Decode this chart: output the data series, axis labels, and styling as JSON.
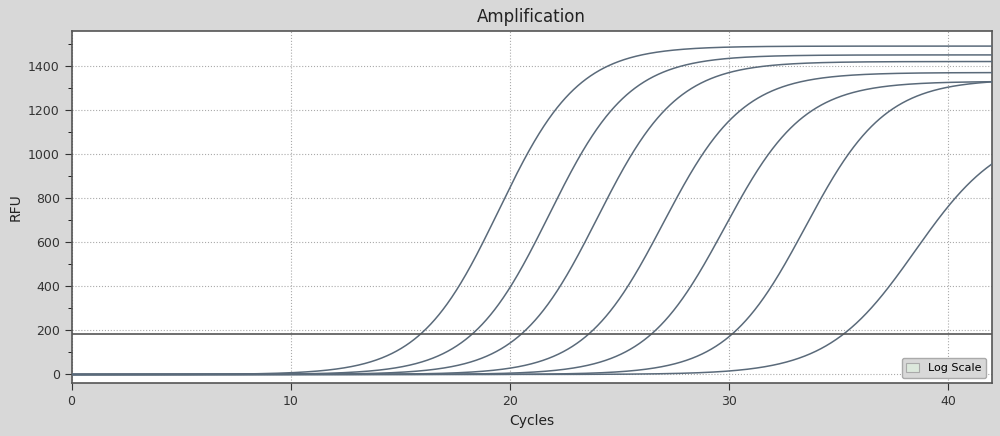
{
  "title": "Amplification",
  "xlabel": "Cycles",
  "ylabel": "RFU",
  "xlim": [
    0,
    42
  ],
  "ylim": [
    -40,
    1560
  ],
  "xticks": [
    0,
    10,
    20,
    30,
    40
  ],
  "yticks": [
    0,
    200,
    400,
    600,
    800,
    1000,
    1200,
    1400
  ],
  "outer_bg_color": "#d8d8d8",
  "plot_bg_color": "#ffffff",
  "grid_color": "#aaaaaa",
  "curve_color": "#5a6a7a",
  "threshold_color": "#555555",
  "threshold_y": 185,
  "curves": [
    {
      "L": 1490,
      "k": 0.55,
      "x0": 19.5
    },
    {
      "L": 1450,
      "k": 0.55,
      "x0": 21.8
    },
    {
      "L": 1420,
      "k": 0.55,
      "x0": 24.0
    },
    {
      "L": 1370,
      "k": 0.55,
      "x0": 27.0
    },
    {
      "L": 1330,
      "k": 0.55,
      "x0": 29.8
    },
    {
      "L": 1340,
      "k": 0.55,
      "x0": 33.5
    },
    {
      "L": 1120,
      "k": 0.5,
      "x0": 38.5
    }
  ],
  "legend_label": "Log Scale",
  "legend_box_facecolor": "#dce8dc",
  "legend_box_edgecolor": "#aaaaaa",
  "title_fontsize": 12,
  "axis_label_fontsize": 10,
  "tick_fontsize": 9
}
